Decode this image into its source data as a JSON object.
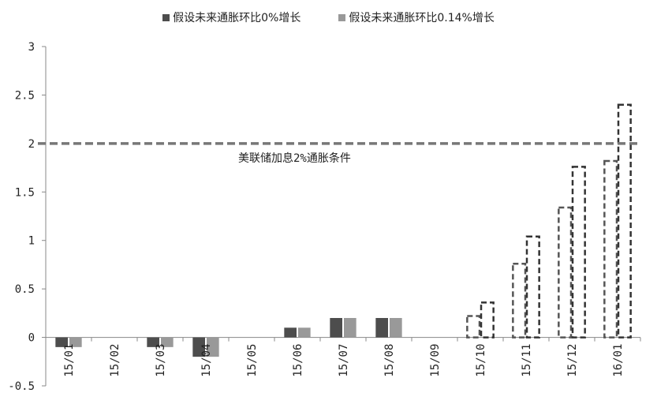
{
  "legend": {
    "series_0": "假设未来通胀环比0%增长",
    "series_1": "假设未来通胀环比0.14%增长"
  },
  "colors": {
    "series_0": "#4d4d4d",
    "series_1": "#999999",
    "threshold": "#777777"
  },
  "chart_data": {
    "type": "bar",
    "categories": [
      "15/01",
      "15/02",
      "15/03",
      "15/04",
      "15/05",
      "15/06",
      "15/07",
      "15/08",
      "15/09",
      "15/10",
      "15/11",
      "15/12",
      "16/01"
    ],
    "series": [
      {
        "name": "假设未来通胀环比0%增长",
        "values": [
          -0.1,
          0,
          -0.1,
          -0.2,
          0,
          0.1,
          0.2,
          0.2,
          0,
          0.22,
          0.76,
          1.34,
          1.82
        ]
      },
      {
        "name": "假设未来通胀环比0.14%增长",
        "values": [
          -0.1,
          0,
          -0.1,
          -0.2,
          0,
          0.1,
          0.2,
          0.2,
          0,
          0.36,
          1.04,
          1.76,
          2.4
        ]
      }
    ],
    "projected_from_index": 9,
    "yticks": [
      "3",
      "2.5",
      "2",
      "1.5",
      "1",
      "0.5",
      "0",
      "-0.5"
    ],
    "ylim": [
      -0.5,
      3
    ],
    "threshold": {
      "value": 2,
      "label": "美联储加息2%通胀条件"
    },
    "legend_position": "top"
  }
}
